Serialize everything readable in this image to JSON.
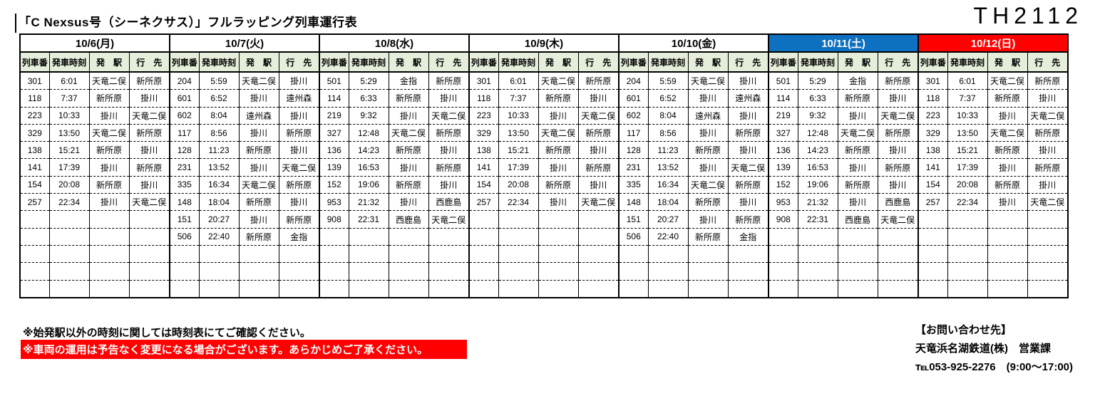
{
  "page": {
    "title": "「C Nexsus号（シーネクサス）」フルラッピング列車運行表",
    "code": "TH2112"
  },
  "colors": {
    "weekday_header_bg": "#ffffff",
    "weekday_header_text": "#000000",
    "saturday_header_bg": "#0e70c0",
    "saturday_header_text": "#ffffff",
    "sunday_header_bg": "#ff0000",
    "sunday_header_text": "#ffffff",
    "subheader_bg": "#e5eeda",
    "banner_bg": "#ff0000",
    "banner_text": "#ffffff"
  },
  "table": {
    "sub_headers": [
      "列車番",
      "発車時刻",
      "発　駅",
      "行　先"
    ],
    "row_count": 13,
    "days": [
      {
        "date": "10/6(月)",
        "style": "weekday",
        "trains": [
          {
            "no": "301",
            "time": "6:01",
            "from": "天竜二俣",
            "to": "新所原"
          },
          {
            "no": "118",
            "time": "7:37",
            "from": "新所原",
            "to": "掛川"
          },
          {
            "no": "223",
            "time": "10:33",
            "from": "掛川",
            "to": "天竜二俣"
          },
          {
            "no": "329",
            "time": "13:50",
            "from": "天竜二俣",
            "to": "新所原"
          },
          {
            "no": "138",
            "time": "15:21",
            "from": "新所原",
            "to": "掛川"
          },
          {
            "no": "141",
            "time": "17:39",
            "from": "掛川",
            "to": "新所原"
          },
          {
            "no": "154",
            "time": "20:08",
            "from": "新所原",
            "to": "掛川"
          },
          {
            "no": "257",
            "time": "22:34",
            "from": "掛川",
            "to": "天竜二俣"
          }
        ]
      },
      {
        "date": "10/7(火)",
        "style": "weekday",
        "trains": [
          {
            "no": "204",
            "time": "5:59",
            "from": "天竜二俣",
            "to": "掛川"
          },
          {
            "no": "601",
            "time": "6:52",
            "from": "掛川",
            "to": "遠州森"
          },
          {
            "no": "602",
            "time": "8:04",
            "from": "遠州森",
            "to": "掛川"
          },
          {
            "no": "117",
            "time": "8:56",
            "from": "掛川",
            "to": "新所原"
          },
          {
            "no": "128",
            "time": "11:23",
            "from": "新所原",
            "to": "掛川"
          },
          {
            "no": "231",
            "time": "13:52",
            "from": "掛川",
            "to": "天竜二俣"
          },
          {
            "no": "335",
            "time": "16:34",
            "from": "天竜二俣",
            "to": "新所原"
          },
          {
            "no": "148",
            "time": "18:04",
            "from": "新所原",
            "to": "掛川"
          },
          {
            "no": "151",
            "time": "20:27",
            "from": "掛川",
            "to": "新所原"
          },
          {
            "no": "506",
            "time": "22:40",
            "from": "新所原",
            "to": "金指"
          }
        ]
      },
      {
        "date": "10/8(水)",
        "style": "weekday",
        "trains": [
          {
            "no": "501",
            "time": "5:29",
            "from": "金指",
            "to": "新所原"
          },
          {
            "no": "114",
            "time": "6:33",
            "from": "新所原",
            "to": "掛川"
          },
          {
            "no": "219",
            "time": "9:32",
            "from": "掛川",
            "to": "天竜二俣"
          },
          {
            "no": "327",
            "time": "12:48",
            "from": "天竜二俣",
            "to": "新所原"
          },
          {
            "no": "136",
            "time": "14:23",
            "from": "新所原",
            "to": "掛川"
          },
          {
            "no": "139",
            "time": "16:53",
            "from": "掛川",
            "to": "新所原"
          },
          {
            "no": "152",
            "time": "19:06",
            "from": "新所原",
            "to": "掛川"
          },
          {
            "no": "953",
            "time": "21:32",
            "from": "掛川",
            "to": "西鹿島"
          },
          {
            "no": "908",
            "time": "22:31",
            "from": "西鹿島",
            "to": "天竜二俣"
          }
        ]
      },
      {
        "date": "10/9(木)",
        "style": "weekday",
        "trains": [
          {
            "no": "301",
            "time": "6:01",
            "from": "天竜二俣",
            "to": "新所原"
          },
          {
            "no": "118",
            "time": "7:37",
            "from": "新所原",
            "to": "掛川"
          },
          {
            "no": "223",
            "time": "10:33",
            "from": "掛川",
            "to": "天竜二俣"
          },
          {
            "no": "329",
            "time": "13:50",
            "from": "天竜二俣",
            "to": "新所原"
          },
          {
            "no": "138",
            "time": "15:21",
            "from": "新所原",
            "to": "掛川"
          },
          {
            "no": "141",
            "time": "17:39",
            "from": "掛川",
            "to": "新所原"
          },
          {
            "no": "154",
            "time": "20:08",
            "from": "新所原",
            "to": "掛川"
          },
          {
            "no": "257",
            "time": "22:34",
            "from": "掛川",
            "to": "天竜二俣"
          }
        ]
      },
      {
        "date": "10/10(金)",
        "style": "weekday",
        "trains": [
          {
            "no": "204",
            "time": "5:59",
            "from": "天竜二俣",
            "to": "掛川"
          },
          {
            "no": "601",
            "time": "6:52",
            "from": "掛川",
            "to": "遠州森"
          },
          {
            "no": "602",
            "time": "8:04",
            "from": "遠州森",
            "to": "掛川"
          },
          {
            "no": "117",
            "time": "8:56",
            "from": "掛川",
            "to": "新所原"
          },
          {
            "no": "128",
            "time": "11:23",
            "from": "新所原",
            "to": "掛川"
          },
          {
            "no": "231",
            "time": "13:52",
            "from": "掛川",
            "to": "天竜二俣"
          },
          {
            "no": "335",
            "time": "16:34",
            "from": "天竜二俣",
            "to": "新所原"
          },
          {
            "no": "148",
            "time": "18:04",
            "from": "新所原",
            "to": "掛川"
          },
          {
            "no": "151",
            "time": "20:27",
            "from": "掛川",
            "to": "新所原"
          },
          {
            "no": "506",
            "time": "22:40",
            "from": "新所原",
            "to": "金指"
          }
        ]
      },
      {
        "date": "10/11(土)",
        "style": "saturday",
        "trains": [
          {
            "no": "501",
            "time": "5:29",
            "from": "金指",
            "to": "新所原"
          },
          {
            "no": "114",
            "time": "6:33",
            "from": "新所原",
            "to": "掛川"
          },
          {
            "no": "219",
            "time": "9:32",
            "from": "掛川",
            "to": "天竜二俣"
          },
          {
            "no": "327",
            "time": "12:48",
            "from": "天竜二俣",
            "to": "新所原"
          },
          {
            "no": "136",
            "time": "14:23",
            "from": "新所原",
            "to": "掛川"
          },
          {
            "no": "139",
            "time": "16:53",
            "from": "掛川",
            "to": "新所原"
          },
          {
            "no": "152",
            "time": "19:06",
            "from": "新所原",
            "to": "掛川"
          },
          {
            "no": "953",
            "time": "21:32",
            "from": "掛川",
            "to": "西鹿島"
          },
          {
            "no": "908",
            "time": "22:31",
            "from": "西鹿島",
            "to": "天竜二俣"
          }
        ]
      },
      {
        "date": "10/12(日)",
        "style": "sunday",
        "trains": [
          {
            "no": "301",
            "time": "6:01",
            "from": "天竜二俣",
            "to": "新所原"
          },
          {
            "no": "118",
            "time": "7:37",
            "from": "新所原",
            "to": "掛川"
          },
          {
            "no": "223",
            "time": "10:33",
            "from": "掛川",
            "to": "天竜二俣"
          },
          {
            "no": "329",
            "time": "13:50",
            "from": "天竜二俣",
            "to": "新所原"
          },
          {
            "no": "138",
            "time": "15:21",
            "from": "新所原",
            "to": "掛川"
          },
          {
            "no": "141",
            "time": "17:39",
            "from": "掛川",
            "to": "新所原"
          },
          {
            "no": "154",
            "time": "20:08",
            "from": "新所原",
            "to": "掛川"
          },
          {
            "no": "257",
            "time": "22:34",
            "from": "掛川",
            "to": "天竜二俣"
          }
        ]
      }
    ]
  },
  "notes": {
    "note1": "※始発駅以外の時刻に関しては時刻表にてご確認ください。",
    "note2": "※車両の運用は予告なく変更になる場合がございます。あらかじめご了承ください。"
  },
  "contact": {
    "heading": "【お問い合わせ先】",
    "company": "天竜浜名湖鉄道(株)　営業課",
    "phone": "℡053-925-2276　(9:00～17:00)"
  }
}
